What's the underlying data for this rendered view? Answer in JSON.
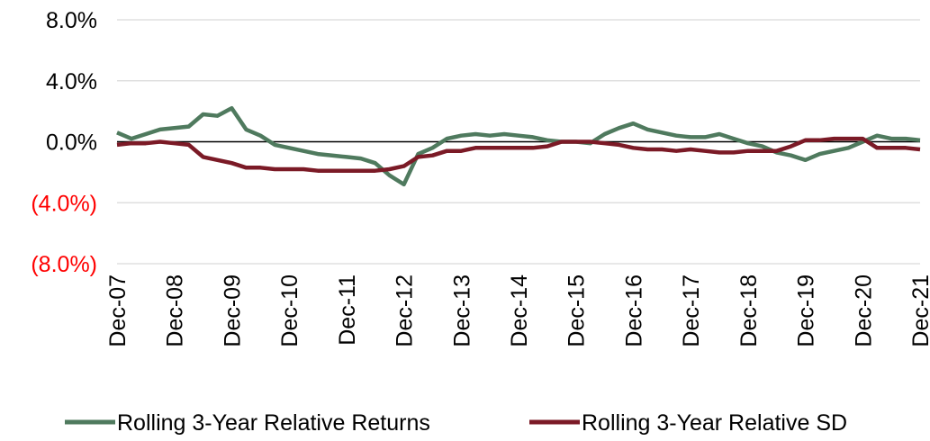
{
  "chart_data": {
    "type": "line",
    "categories": [
      "Dec-07",
      null,
      null,
      null,
      "Dec-08",
      null,
      null,
      null,
      "Dec-09",
      null,
      null,
      null,
      "Dec-10",
      null,
      null,
      null,
      "Dec-11",
      null,
      null,
      null,
      "Dec-12",
      null,
      null,
      null,
      "Dec-13",
      null,
      null,
      null,
      "Dec-14",
      null,
      null,
      null,
      "Dec-15",
      null,
      null,
      null,
      "Dec-16",
      null,
      null,
      null,
      "Dec-17",
      null,
      null,
      null,
      "Dec-18",
      null,
      null,
      null,
      "Dec-19",
      null,
      null,
      null,
      "Dec-20",
      null,
      null,
      null,
      "Dec-21"
    ],
    "series": [
      {
        "name": "Rolling 3-Year Relative Returns",
        "color": "#4f7a5e",
        "values": [
          0.6,
          0.2,
          0.5,
          0.8,
          0.9,
          1.0,
          1.8,
          1.7,
          2.2,
          0.8,
          0.4,
          -0.2,
          -0.4,
          -0.6,
          -0.8,
          -0.9,
          -1.0,
          -1.1,
          -1.4,
          -2.2,
          -2.8,
          -0.8,
          -0.4,
          0.2,
          0.4,
          0.5,
          0.4,
          0.5,
          0.4,
          0.3,
          0.1,
          0.0,
          0.0,
          -0.1,
          0.5,
          0.9,
          1.2,
          0.8,
          0.6,
          0.4,
          0.3,
          0.3,
          0.5,
          0.2,
          -0.1,
          -0.3,
          -0.7,
          -0.9,
          -1.2,
          -0.8,
          -0.6,
          -0.4,
          0.0,
          0.4,
          0.2,
          0.2,
          0.1
        ]
      },
      {
        "name": "Rolling 3-Year Relative SD",
        "color": "#7b1a26",
        "values": [
          -0.2,
          -0.1,
          -0.1,
          0.0,
          -0.1,
          -0.2,
          -1.0,
          -1.2,
          -1.4,
          -1.7,
          -1.7,
          -1.8,
          -1.8,
          -1.8,
          -1.9,
          -1.9,
          -1.9,
          -1.9,
          -1.9,
          -1.8,
          -1.6,
          -1.0,
          -0.9,
          -0.6,
          -0.6,
          -0.4,
          -0.4,
          -0.4,
          -0.4,
          -0.4,
          -0.3,
          0.0,
          0.0,
          0.0,
          -0.1,
          -0.2,
          -0.4,
          -0.5,
          -0.5,
          -0.6,
          -0.5,
          -0.6,
          -0.7,
          -0.7,
          -0.6,
          -0.6,
          -0.6,
          -0.3,
          0.1,
          0.1,
          0.2,
          0.2,
          0.2,
          -0.4,
          -0.4,
          -0.4,
          -0.5
        ]
      }
    ],
    "ylim": [
      -8,
      8
    ],
    "yticks": [
      {
        "value": -8,
        "label": "(8.0%)"
      },
      {
        "value": -4,
        "label": "(4.0%)"
      },
      {
        "value": 0,
        "label": "0.0%"
      },
      {
        "value": 4,
        "label": "4.0%"
      },
      {
        "value": 8,
        "label": "8.0%"
      }
    ],
    "negative_tick_color": "#ff0000",
    "grid": true,
    "legend": "bottom"
  }
}
